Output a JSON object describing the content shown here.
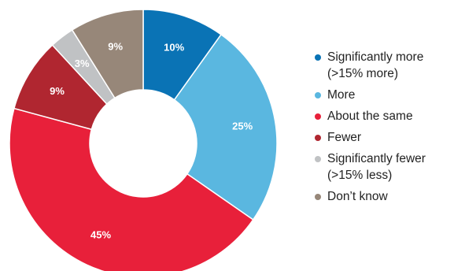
{
  "chart_data": {
    "type": "pie",
    "donut": true,
    "title": "",
    "legend_position": "right",
    "categories": [
      "Significantly more (>15% more)",
      "More",
      "About the same",
      "Fewer",
      "Significantly fewer (>15% less)",
      "Don’t know"
    ],
    "legend_lines": [
      [
        "Significantly more",
        "(>15% more)"
      ],
      [
        "More"
      ],
      [
        "About the same"
      ],
      [
        "Fewer"
      ],
      [
        "Significantly fewer",
        "(>15% less)"
      ],
      [
        "Don’t know"
      ]
    ],
    "values": [
      10,
      25,
      45,
      9,
      3,
      9
    ],
    "value_labels": [
      "10%",
      "25%",
      "45%",
      "9%",
      "3%",
      "9%"
    ],
    "colors": [
      "#0a73b5",
      "#5ab7e0",
      "#e8203a",
      "#b02630",
      "#c0c2c4",
      "#978779"
    ],
    "label_colors": [
      "#ffffff",
      "#ffffff",
      "#ffffff",
      "#ffffff",
      "#ffffff",
      "#ffffff"
    ]
  }
}
